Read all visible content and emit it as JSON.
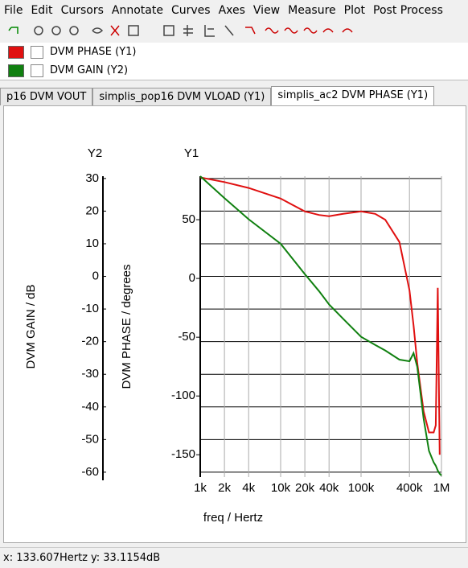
{
  "menu": [
    "File",
    "Edit",
    "Cursors",
    "Annotate",
    "Curves",
    "Axes",
    "View",
    "Measure",
    "Plot",
    "Post Process"
  ],
  "tabs": [
    "p16 DVM VOUT",
    "simplis_pop16 DVM VLOAD (Y1)",
    "simplis_ac2 DVM PHASE (Y1)"
  ],
  "status": {
    "x": "x: 133.607Hertz",
    "y": "y: 33.1154dB"
  },
  "chart_data": {
    "type": "line",
    "xlabel": "freq / Hertz",
    "ylabel": "DVM PHASE / degrees",
    "y2label": "DVM GAIN / dB",
    "y_axis_tag": "Y1",
    "y2_axis_tag": "Y2",
    "xscale": "log",
    "grid": true,
    "x": [
      1000,
      2000,
      4000,
      10000,
      20000,
      30000,
      40000,
      60000,
      100000,
      150000,
      200000,
      300000,
      400000,
      450000,
      500000,
      600000,
      700000,
      800000,
      850000,
      900000,
      950000,
      1000000
    ],
    "xlim": [
      1000,
      1000000
    ],
    "xticks": [
      {
        "value": 1000,
        "label": "1k"
      },
      {
        "value": 2000,
        "label": "2k"
      },
      {
        "value": 4000,
        "label": "4k"
      },
      {
        "value": 10000,
        "label": "10k"
      },
      {
        "value": 20000,
        "label": "20k"
      },
      {
        "value": 40000,
        "label": "40k"
      },
      {
        "value": 100000,
        "label": "100k"
      },
      {
        "value": 400000,
        "label": "400k"
      },
      {
        "value": 1000000,
        "label": "1M"
      }
    ],
    "ylim": [
      -169,
      87
    ],
    "yticks": [
      -150,
      -100,
      -50,
      0,
      50
    ],
    "y2lim": [
      -61.5,
      30.7
    ],
    "y2ticks": [
      -60,
      -50,
      -40,
      -30,
      -20,
      -10,
      0,
      10,
      20,
      30
    ],
    "series": [
      {
        "name": "DVM PHASE (Y1)",
        "color": "#e01010",
        "axis": "y",
        "values": [
          86,
          82,
          77,
          68,
          57,
          54,
          53,
          55,
          57,
          55,
          50,
          31,
          -10,
          -40,
          -72,
          -113,
          -131,
          -131,
          -125,
          -8,
          -150,
          null
        ]
      },
      {
        "name": "DVM GAIN (Y2)",
        "color": "#108010",
        "axis": "y2",
        "values": [
          30.7,
          24,
          17.5,
          10,
          0.7,
          -4.5,
          -8.6,
          -13,
          -18.5,
          -21,
          -22.7,
          -25.5,
          -26,
          -23.5,
          -27.7,
          -43.6,
          -53.5,
          -57,
          -58,
          -59.5,
          -60.5,
          -61
        ]
      }
    ]
  }
}
